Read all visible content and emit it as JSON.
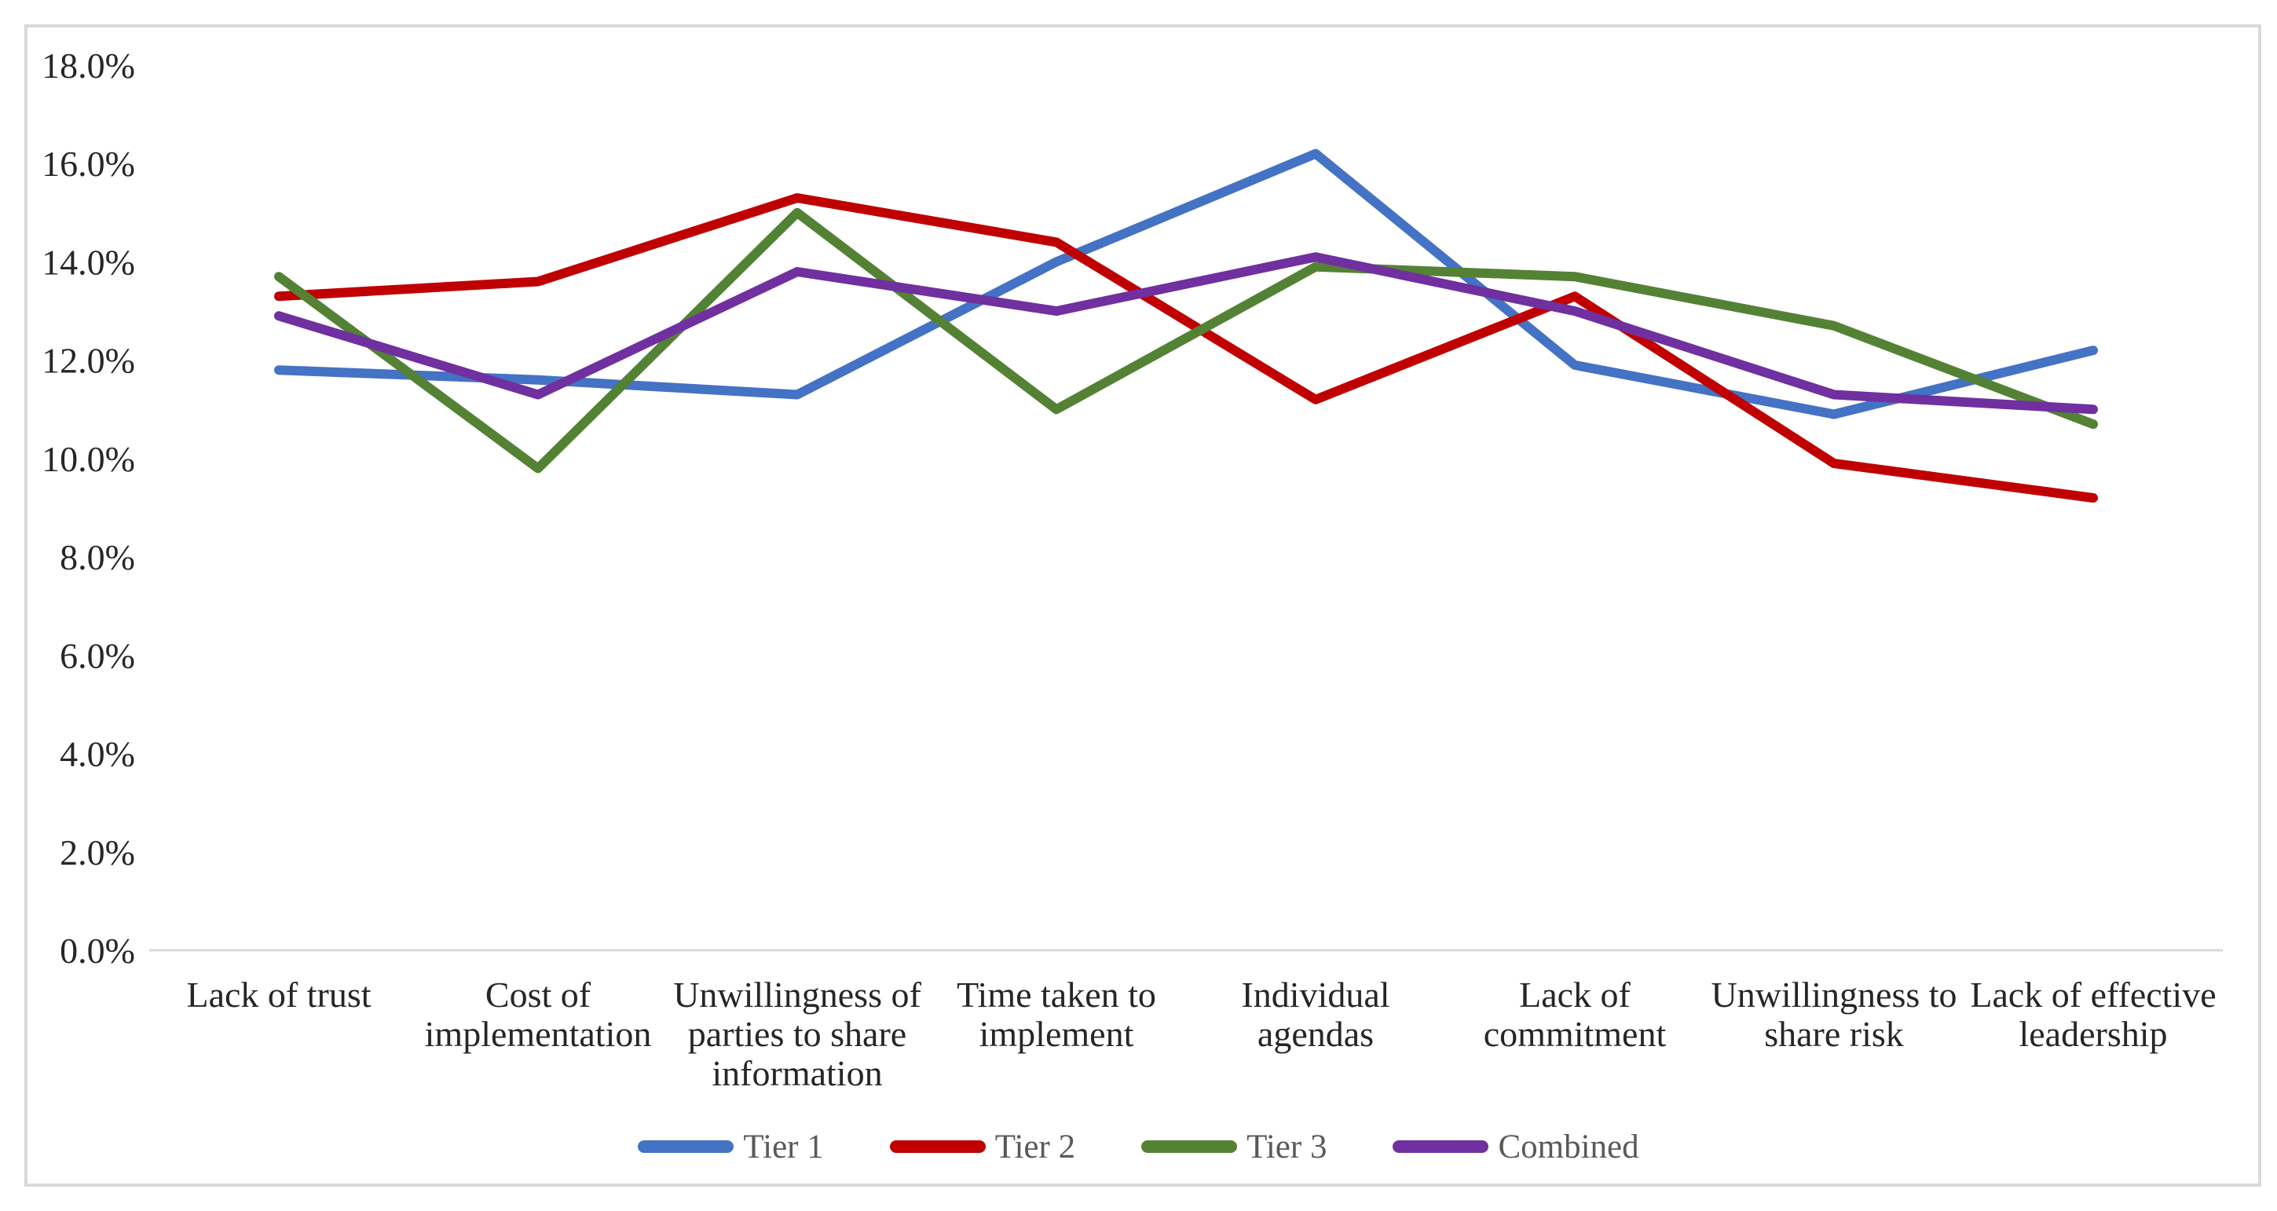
{
  "chart_data": {
    "type": "line",
    "title": "",
    "categories": [
      "Lack of trust",
      "Cost of implementation",
      "Unwillingness of parties to share information",
      "Time taken to implement",
      "Individual agendas",
      "Lack of commitment",
      "Unwillingness to share risk",
      "Lack of effective leadership"
    ],
    "category_label_lines": [
      [
        "Lack of trust"
      ],
      [
        "Cost of",
        "implementation"
      ],
      [
        "Unwillingness of",
        "parties to share",
        "information"
      ],
      [
        "Time taken to",
        "implement"
      ],
      [
        "Individual",
        "agendas"
      ],
      [
        "Lack of",
        "commitment"
      ],
      [
        "Unwillingness to",
        "share risk"
      ],
      [
        "Lack of effective",
        "leadership"
      ]
    ],
    "series": [
      {
        "name": "Tier 1",
        "color": "#4472C4",
        "values": [
          11.8,
          11.6,
          11.3,
          14.0,
          16.2,
          11.9,
          10.9,
          12.2
        ]
      },
      {
        "name": "Tier 2",
        "color": "#C00000",
        "values": [
          13.3,
          13.6,
          15.3,
          14.4,
          11.2,
          13.3,
          9.9,
          9.2
        ]
      },
      {
        "name": "Tier 3",
        "color": "#548235",
        "values": [
          13.7,
          9.8,
          15.0,
          11.0,
          13.9,
          13.7,
          12.7,
          10.7
        ]
      },
      {
        "name": "Combined",
        "color": "#7030A0",
        "values": [
          12.9,
          11.3,
          13.8,
          13.0,
          14.1,
          13.0,
          11.3,
          11.0
        ]
      }
    ],
    "y_axis": {
      "min": 0,
      "max": 18,
      "step": 2,
      "tick_labels": [
        "0.0%",
        "2.0%",
        "4.0%",
        "6.0%",
        "8.0%",
        "10.0%",
        "12.0%",
        "14.0%",
        "16.0%",
        "18.0%"
      ]
    },
    "x_axis": {
      "line_color": "#D9D9D9"
    },
    "legend": {
      "position": "bottom",
      "entries": [
        "Tier 1",
        "Tier 2",
        "Tier 3",
        "Combined"
      ]
    },
    "grid": false,
    "colors": {
      "tick_label": "#262626",
      "legend_text": "#595959",
      "frame_border": "#D9D9D9"
    }
  }
}
